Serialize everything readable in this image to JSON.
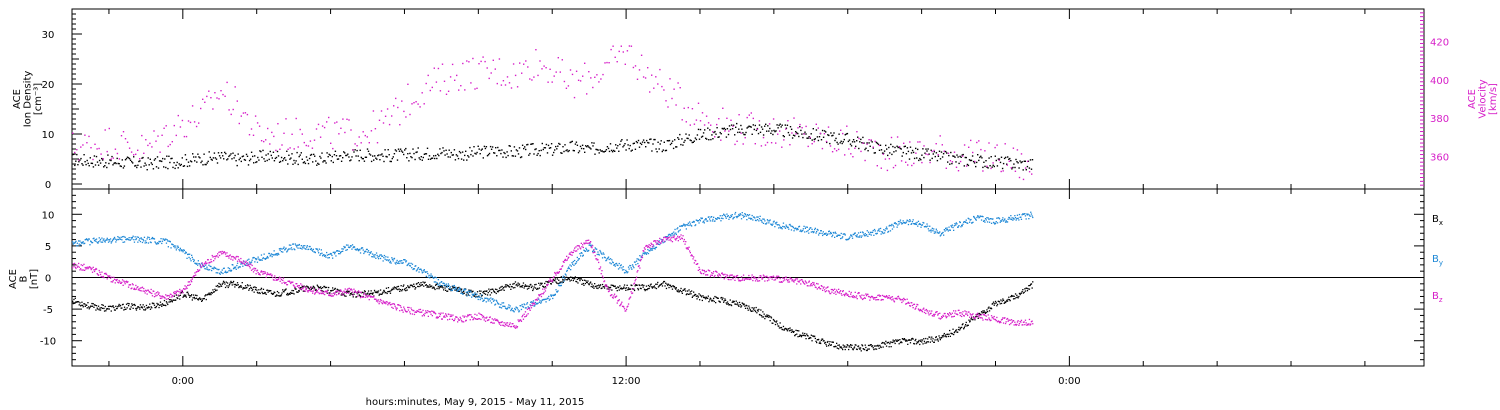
{
  "colors": {
    "black": "#000000",
    "blue": "#1e88d6",
    "magenta": "#d61ec8"
  },
  "xaxis": {
    "label": "hours:minutes, May  9, 2015 - May 11, 2015",
    "ticks": [
      {
        "hour": 0,
        "label": "0:00"
      },
      {
        "hour": 12,
        "label": "12:00"
      },
      {
        "hour": 24,
        "label": "0:00"
      }
    ],
    "range_hours": [
      -3,
      33.6
    ],
    "minor_step_hours": 2
  },
  "chart_data": [
    {
      "type": "scatter",
      "panel": "top",
      "ylabel_lines": [
        "ACE",
        "Ion Density",
        "[cm⁻³]"
      ],
      "ylabel2_lines": [
        "ACE",
        "Velocity",
        "[km/s]"
      ],
      "ylim": [
        -1,
        35
      ],
      "yticks": [
        0,
        10,
        20,
        30
      ],
      "y2lim": [
        343,
        437
      ],
      "y2ticks": [
        360,
        380,
        400,
        420
      ],
      "series": [
        {
          "axis": "left",
          "color": "black",
          "points": [
            [
              -3,
              5
            ],
            [
              -2,
              4.6
            ],
            [
              -1,
              4.2
            ],
            [
              -0.3,
              4.5
            ],
            [
              0.5,
              5.2
            ],
            [
              1,
              5.5
            ],
            [
              1.5,
              5
            ],
            [
              2,
              5.5
            ],
            [
              2.5,
              5.8
            ],
            [
              3,
              5.2
            ],
            [
              3.5,
              5
            ],
            [
              4,
              5.5
            ],
            [
              4.5,
              6
            ],
            [
              5,
              6
            ],
            [
              5.5,
              5.8
            ],
            [
              6,
              6
            ],
            [
              6.5,
              6.2
            ],
            [
              7,
              6.5
            ],
            [
              7.5,
              6
            ],
            [
              8,
              6.5
            ],
            [
              8.5,
              6.8
            ],
            [
              9,
              6.5
            ],
            [
              9.5,
              7
            ],
            [
              10,
              7
            ],
            [
              10.5,
              7.5
            ],
            [
              11,
              7
            ],
            [
              11.5,
              7.8
            ],
            [
              12,
              8
            ],
            [
              12.5,
              8
            ],
            [
              13,
              7.8
            ],
            [
              13.5,
              9
            ],
            [
              14,
              10
            ],
            [
              14.5,
              10.5
            ],
            [
              15,
              11
            ],
            [
              15.5,
              11.2
            ],
            [
              16,
              11
            ],
            [
              16.5,
              10.5
            ],
            [
              17,
              10
            ],
            [
              17.5,
              9.5
            ],
            [
              18,
              9
            ],
            [
              18.5,
              8
            ],
            [
              19,
              7
            ],
            [
              19.5,
              6.5
            ],
            [
              20,
              6
            ],
            [
              20.5,
              5.5
            ],
            [
              21,
              5
            ],
            [
              21.5,
              4.8
            ],
            [
              22,
              4.5
            ],
            [
              22.5,
              4.2
            ],
            [
              23,
              4
            ]
          ]
        },
        {
          "axis": "right",
          "color": "magenta",
          "points": [
            [
              -3,
              365
            ],
            [
              -2,
              368
            ],
            [
              -1,
              364
            ],
            [
              -0.5,
              372
            ],
            [
              0,
              378
            ],
            [
              0.5,
              382
            ],
            [
              1,
              395
            ],
            [
              1.5,
              386
            ],
            [
              2,
              372
            ],
            [
              2.5,
              371
            ],
            [
              3,
              372
            ],
            [
              3.5,
              373
            ],
            [
              4,
              372
            ],
            [
              4.5,
              372
            ],
            [
              5,
              374
            ],
            [
              5.5,
              378
            ],
            [
              6,
              388
            ],
            [
              6.5,
              396
            ],
            [
              7,
              400
            ],
            [
              7.5,
              404
            ],
            [
              8,
              404
            ],
            [
              8.5,
              405
            ],
            [
              9,
              403
            ],
            [
              9.5,
              410
            ],
            [
              10,
              406
            ],
            [
              10.5,
              398
            ],
            [
              11,
              402
            ],
            [
              11.5,
              407
            ],
            [
              12,
              416
            ],
            [
              12.5,
              404
            ],
            [
              13,
              396
            ],
            [
              13.5,
              388
            ],
            [
              14,
              382
            ],
            [
              14.5,
              378
            ],
            [
              15,
              375
            ],
            [
              15.5,
              374
            ],
            [
              16,
              374
            ],
            [
              16.5,
              372
            ],
            [
              17,
              371
            ],
            [
              17.5,
              369
            ],
            [
              18,
              367
            ],
            [
              18.5,
              365
            ],
            [
              19,
              362
            ],
            [
              19.5,
              362
            ],
            [
              20,
              362
            ],
            [
              20.5,
              364
            ],
            [
              21,
              361
            ],
            [
              21.5,
              360
            ],
            [
              22,
              360
            ],
            [
              22.5,
              358
            ],
            [
              23,
              352
            ]
          ]
        }
      ]
    },
    {
      "type": "scatter",
      "panel": "bottom",
      "ylabel_lines": [
        "ACE",
        "B",
        "[nT]"
      ],
      "ylim": [
        -14,
        14
      ],
      "yticks": [
        -10,
        -5,
        0,
        5,
        10
      ],
      "zero_line": true,
      "legend": [
        {
          "label": "B",
          "sub": "x",
          "color": "black"
        },
        {
          "label": "B",
          "sub": "y",
          "color": "blue"
        },
        {
          "label": "B",
          "sub": "z",
          "color": "magenta"
        }
      ],
      "series": [
        {
          "name": "Bx",
          "color": "black",
          "points": [
            [
              -3,
              -3.5
            ],
            [
              -2.5,
              -4.5
            ],
            [
              -2,
              -4.8
            ],
            [
              -1.5,
              -4.5
            ],
            [
              -1,
              -4.6
            ],
            [
              -0.5,
              -4
            ],
            [
              0,
              -2.5
            ],
            [
              0.5,
              -3.5
            ],
            [
              1,
              -1
            ],
            [
              1.5,
              -1
            ],
            [
              2,
              -2
            ],
            [
              2.5,
              -2.5
            ],
            [
              3,
              -2
            ],
            [
              3.5,
              -1.5
            ],
            [
              4,
              -2
            ],
            [
              4.5,
              -2.5
            ],
            [
              5,
              -2.5
            ],
            [
              5.5,
              -2
            ],
            [
              6,
              -1.5
            ],
            [
              6.5,
              -1
            ],
            [
              7,
              -1.5
            ],
            [
              7.5,
              -2
            ],
            [
              8,
              -2.5
            ],
            [
              8.5,
              -2
            ],
            [
              9,
              -1
            ],
            [
              9.5,
              -1.5
            ],
            [
              10,
              -0.5
            ],
            [
              10.5,
              0
            ],
            [
              11,
              -1
            ],
            [
              11.5,
              -1.5
            ],
            [
              12,
              -1.5
            ],
            [
              12.5,
              -1.5
            ],
            [
              13,
              -1
            ],
            [
              13.5,
              -2
            ],
            [
              14,
              -3
            ],
            [
              14.5,
              -3.5
            ],
            [
              15,
              -4
            ],
            [
              15.5,
              -5
            ],
            [
              16,
              -7
            ],
            [
              16.5,
              -8.5
            ],
            [
              17,
              -9.5
            ],
            [
              17.5,
              -10.5
            ],
            [
              18,
              -11
            ],
            [
              18.5,
              -11
            ],
            [
              19,
              -10.5
            ],
            [
              19.5,
              -10
            ],
            [
              20,
              -10
            ],
            [
              20.5,
              -9.5
            ],
            [
              21,
              -8
            ],
            [
              21.5,
              -6
            ],
            [
              22,
              -4
            ],
            [
              22.5,
              -3
            ],
            [
              23,
              -1
            ]
          ]
        },
        {
          "name": "By",
          "color": "blue",
          "points": [
            [
              -3,
              5.5
            ],
            [
              -2.5,
              5.8
            ],
            [
              -2,
              6
            ],
            [
              -1.5,
              6.2
            ],
            [
              -1,
              6
            ],
            [
              -0.5,
              5.8
            ],
            [
              0,
              4
            ],
            [
              0.5,
              2
            ],
            [
              1,
              1
            ],
            [
              1.5,
              2
            ],
            [
              2,
              3
            ],
            [
              2.5,
              4
            ],
            [
              3,
              5
            ],
            [
              3.5,
              4.5
            ],
            [
              4,
              3.5
            ],
            [
              4.5,
              5
            ],
            [
              5,
              4
            ],
            [
              5.5,
              3
            ],
            [
              6,
              2.5
            ],
            [
              6.5,
              1
            ],
            [
              7,
              -1
            ],
            [
              7.5,
              -2
            ],
            [
              8,
              -3
            ],
            [
              8.5,
              -4
            ],
            [
              9,
              -5
            ],
            [
              9.5,
              -4
            ],
            [
              10,
              -3
            ],
            [
              10.5,
              2
            ],
            [
              11,
              5
            ],
            [
              11.5,
              3
            ],
            [
              12,
              1
            ],
            [
              12.5,
              4
            ],
            [
              13,
              6
            ],
            [
              13.5,
              8
            ],
            [
              14,
              9
            ],
            [
              14.5,
              9.5
            ],
            [
              15,
              10
            ],
            [
              15.5,
              9.5
            ],
            [
              16,
              8.5
            ],
            [
              16.5,
              8
            ],
            [
              17,
              7.5
            ],
            [
              17.5,
              7
            ],
            [
              18,
              6.5
            ],
            [
              18.5,
              7
            ],
            [
              19,
              7.5
            ],
            [
              19.5,
              9
            ],
            [
              20,
              8.5
            ],
            [
              20.5,
              7
            ],
            [
              21,
              8.5
            ],
            [
              21.5,
              9.5
            ],
            [
              22,
              9
            ],
            [
              22.5,
              9.5
            ],
            [
              23,
              10
            ]
          ]
        },
        {
          "name": "Bz",
          "color": "magenta",
          "points": [
            [
              -3,
              2
            ],
            [
              -2.5,
              1.5
            ],
            [
              -2,
              0
            ],
            [
              -1.5,
              -1
            ],
            [
              -1,
              -2
            ],
            [
              -0.5,
              -3
            ],
            [
              0,
              -2
            ],
            [
              0.5,
              2
            ],
            [
              1,
              4
            ],
            [
              1.5,
              3
            ],
            [
              2,
              1
            ],
            [
              2.5,
              0
            ],
            [
              3,
              -1
            ],
            [
              3.5,
              -2
            ],
            [
              4,
              -2.5
            ],
            [
              4.5,
              -2
            ],
            [
              5,
              -3
            ],
            [
              5.5,
              -4
            ],
            [
              6,
              -5
            ],
            [
              6.5,
              -5.5
            ],
            [
              7,
              -6
            ],
            [
              7.5,
              -6.5
            ],
            [
              8,
              -6
            ],
            [
              8.5,
              -7
            ],
            [
              9,
              -7.5
            ],
            [
              9.5,
              -4
            ],
            [
              10,
              0
            ],
            [
              10.5,
              4
            ],
            [
              11,
              6
            ],
            [
              11.5,
              -2
            ],
            [
              12,
              -5
            ],
            [
              12.5,
              5
            ],
            [
              13,
              6
            ],
            [
              13.5,
              6.5
            ],
            [
              14,
              1
            ],
            [
              14.5,
              0.5
            ],
            [
              15,
              0
            ],
            [
              15.5,
              0
            ],
            [
              16,
              0
            ],
            [
              16.5,
              -0.5
            ],
            [
              17,
              -1
            ],
            [
              17.5,
              -2
            ],
            [
              18,
              -2.5
            ],
            [
              18.5,
              -3
            ],
            [
              19,
              -3
            ],
            [
              19.5,
              -3.5
            ],
            [
              20,
              -5
            ],
            [
              20.5,
              -6
            ],
            [
              21,
              -5.5
            ],
            [
              21.5,
              -6
            ],
            [
              22,
              -6.5
            ],
            [
              22.5,
              -7
            ],
            [
              23,
              -7
            ]
          ]
        }
      ]
    }
  ]
}
